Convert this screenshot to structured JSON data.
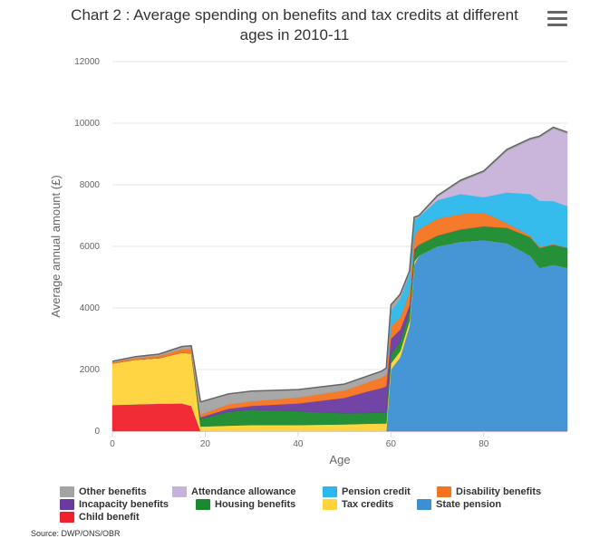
{
  "title": "Chart 2 : Average spending on benefits and tax credits at different ages in 2010-11",
  "source": "Source: DWP/ONS/OBR",
  "menu_icon": "hamburger-menu-icon",
  "chart_data": {
    "type": "area",
    "stacked": true,
    "xlabel": "Age",
    "ylabel": "Average annual amount (£)",
    "xlim": [
      0,
      98
    ],
    "ylim": [
      0,
      12000
    ],
    "xticks": [
      "0",
      "20",
      "40",
      "60",
      "80"
    ],
    "yticks": [
      "0",
      "2000",
      "4000",
      "6000",
      "8000",
      "10000",
      "12000"
    ],
    "grid": true,
    "legend": "bottom",
    "x": [
      0,
      5,
      10,
      15,
      17,
      19,
      25,
      30,
      40,
      50,
      55,
      58,
      59,
      60,
      62,
      64,
      65,
      66,
      70,
      75,
      80,
      85,
      90,
      92,
      95,
      98
    ],
    "series": [
      {
        "name": "Child benefit",
        "color": "#f0212b",
        "values": [
          850,
          870,
          890,
          900,
          820,
          0,
          0,
          0,
          0,
          0,
          0,
          0,
          0,
          0,
          0,
          0,
          0,
          0,
          0,
          0,
          0,
          0,
          0,
          0,
          0,
          0
        ]
      },
      {
        "name": "State pension",
        "color": "#3c8fd2",
        "values": [
          0,
          0,
          0,
          0,
          0,
          0,
          0,
          0,
          0,
          0,
          0,
          0,
          0,
          2000,
          2400,
          3400,
          5400,
          5700,
          6000,
          6150,
          6200,
          6100,
          5700,
          5300,
          5400,
          5300
        ]
      },
      {
        "name": "Tax credits",
        "color": "#ffd33a",
        "values": [
          1350,
          1450,
          1480,
          1650,
          1700,
          150,
          180,
          200,
          200,
          220,
          240,
          250,
          250,
          200,
          200,
          180,
          100,
          0,
          0,
          0,
          0,
          0,
          0,
          0,
          0,
          0
        ]
      },
      {
        "name": "Housing benefits",
        "color": "#1a8a2e",
        "values": [
          0,
          0,
          0,
          0,
          0,
          250,
          450,
          500,
          450,
          360,
          350,
          350,
          360,
          300,
          300,
          300,
          300,
          350,
          350,
          400,
          450,
          500,
          600,
          650,
          650,
          650
        ]
      },
      {
        "name": "Incapacity benefits",
        "color": "#6a3aa0",
        "values": [
          0,
          0,
          0,
          0,
          0,
          50,
          100,
          120,
          250,
          500,
          700,
          800,
          850,
          500,
          400,
          200,
          100,
          0,
          0,
          0,
          0,
          0,
          0,
          0,
          0,
          0
        ]
      },
      {
        "name": "Disability benefits",
        "color": "#f4741f",
        "values": [
          50,
          60,
          80,
          120,
          150,
          100,
          150,
          160,
          200,
          250,
          300,
          350,
          380,
          400,
          400,
          420,
          450,
          500,
          550,
          500,
          450,
          150,
          50,
          30,
          20,
          10
        ]
      },
      {
        "name": "Pension credit",
        "color": "#2ab8ec",
        "values": [
          0,
          0,
          0,
          0,
          0,
          0,
          0,
          0,
          0,
          0,
          0,
          0,
          0,
          500,
          600,
          600,
          500,
          400,
          600,
          650,
          500,
          1000,
          1350,
          1500,
          1400,
          1350
        ]
      },
      {
        "name": "Attendance allowance",
        "color": "#c7b2d9",
        "values": [
          0,
          0,
          0,
          0,
          0,
          0,
          0,
          0,
          0,
          0,
          0,
          0,
          0,
          0,
          0,
          0,
          0,
          0,
          100,
          400,
          800,
          1350,
          1750,
          2050,
          2350,
          2350
        ]
      },
      {
        "name": "Other benefits",
        "color": "#a3a3a3",
        "values": [
          20,
          40,
          50,
          80,
          100,
          400,
          330,
          320,
          250,
          200,
          200,
          200,
          210,
          200,
          150,
          100,
          100,
          50,
          50,
          50,
          50,
          50,
          50,
          50,
          50,
          50
        ]
      }
    ]
  },
  "legend_items": [
    {
      "name": "Other benefits",
      "color": "#a3a3a3"
    },
    {
      "name": "Attendance allowance",
      "color": "#c7b2d9"
    },
    {
      "name": "Pension credit",
      "color": "#2ab8ec"
    },
    {
      "name": "Disability benefits",
      "color": "#f4741f"
    },
    {
      "name": "Incapacity benefits",
      "color": "#6a3aa0"
    },
    {
      "name": "Housing benefits",
      "color": "#1a8a2e"
    },
    {
      "name": "Tax credits",
      "color": "#ffd33a"
    },
    {
      "name": "State pension",
      "color": "#3c8fd2"
    },
    {
      "name": "Child benefit",
      "color": "#f0212b"
    }
  ]
}
